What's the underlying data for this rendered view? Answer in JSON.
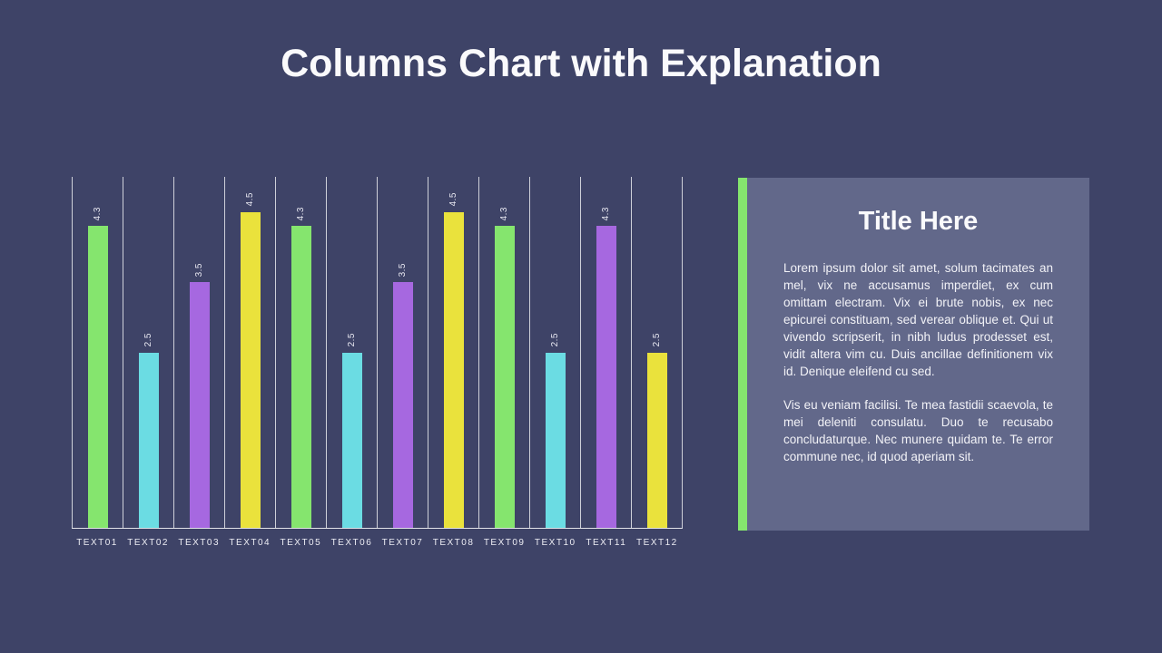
{
  "slide": {
    "title": "Columns Chart with Explanation"
  },
  "chart_data": {
    "type": "bar",
    "title": "",
    "xlabel": "",
    "ylabel": "",
    "categories": [
      "TEXT01",
      "TEXT02",
      "TEXT03",
      "TEXT04",
      "TEXT05",
      "TEXT06",
      "TEXT07",
      "TEXT08",
      "TEXT09",
      "TEXT10",
      "TEXT11",
      "TEXT12"
    ],
    "values": [
      4.3,
      2.5,
      3.5,
      4.5,
      4.3,
      2.5,
      3.5,
      4.5,
      4.3,
      2.5,
      4.3,
      2.5
    ],
    "value_labels": [
      "4.3",
      "2.5",
      "3.5",
      "4.5",
      "4.3",
      "2.5",
      "3.5",
      "4.5",
      "4.3",
      "2.5",
      "4.3",
      "2.5"
    ],
    "bar_colors": [
      "#85E56E",
      "#6BDCE3",
      "#A668E0",
      "#EAE23C",
      "#85E56E",
      "#6BDCE3",
      "#A668E0",
      "#EAE23C",
      "#85E56E",
      "#6BDCE3",
      "#A668E0",
      "#EAE23C"
    ],
    "ylim": [
      0,
      5
    ],
    "grid": "vertical-category-separators",
    "legend": "none"
  },
  "panel": {
    "accent_color": "#85E56E",
    "title": "Title Here",
    "paragraphs": [
      "Lorem ipsum dolor sit amet, solum tacimates an mel, vix ne accusamus imperdiet, ex cum omittam electram. Vix ei brute nobis, ex nec epicurei constituam, sed verear oblique et. Qui ut vivendo scripserit, in nibh ludus prodesset est, vidit altera vim cu. Duis ancillae definitionem vix id. Denique eleifend cu sed.",
      "Vis eu veniam facilisi. Te mea fastidii scaevola, te mei deleniti consulatu. Duo te recusabo concludaturque. Nec munere quidam te. Te error commune nec, id quod aperiam sit."
    ]
  },
  "colors": {
    "background": "#3E4367",
    "panel_background": "#62688A",
    "gridline": "#E6E6EE",
    "text": "#FFFFFF"
  }
}
